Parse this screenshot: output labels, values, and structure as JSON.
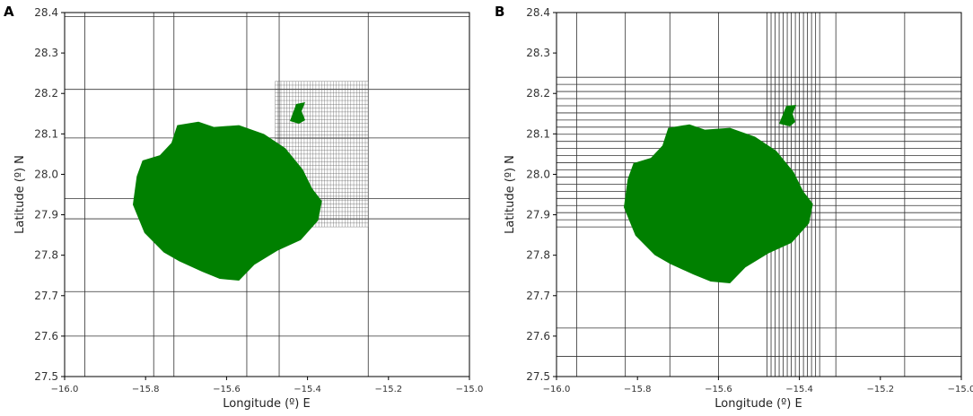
{
  "chart_data": [
    {
      "type": "grid-map",
      "panel_label": "A",
      "xlabel": "Longitude (º) E",
      "ylabel": "Latitude (º) N",
      "xlim": [
        -16.0,
        -15.0
      ],
      "ylim": [
        27.5,
        28.4
      ],
      "xticks": [
        -16.0,
        -15.8,
        -15.6,
        -15.4,
        -15.2,
        -15.0
      ],
      "xtick_labels": [
        "−16.0",
        "−15.8",
        "−15.6",
        "−15.4",
        "−15.2",
        "−15.0"
      ],
      "yticks": [
        27.5,
        27.6,
        27.7,
        27.8,
        27.9,
        28.0,
        28.1,
        28.2,
        28.3,
        28.4
      ],
      "ytick_labels": [
        "27.5",
        "27.6",
        "27.7",
        "27.8",
        "27.9",
        "28.0",
        "28.1",
        "28.2",
        "28.3",
        "28.4"
      ],
      "coarse_grid_lon": [
        -15.95,
        -15.78,
        -15.73,
        -15.55,
        -15.47,
        -15.25
      ],
      "coarse_grid_lat": [
        27.6,
        27.71,
        27.89,
        27.94,
        28.09,
        28.21,
        28.39
      ],
      "refined_box": {
        "lon": [
          -15.48,
          -15.25
        ],
        "lat": [
          27.87,
          28.23
        ],
        "nx": 32,
        "ny": 38
      },
      "island_color": "#008000"
    },
    {
      "type": "grid-map",
      "panel_label": "B",
      "xlabel": "Longitude (º) E",
      "ylabel": "Latitude (º) N",
      "xlim": [
        -16.0,
        -15.0
      ],
      "ylim": [
        27.5,
        28.4
      ],
      "xticks": [
        -16.0,
        -15.8,
        -15.6,
        -15.4,
        -15.2,
        -15.0
      ],
      "xtick_labels": [
        "−16.0",
        "−15.8",
        "−15.6",
        "−15.4",
        "−15.2",
        "−15.0"
      ],
      "yticks": [
        27.5,
        27.6,
        27.7,
        27.8,
        27.9,
        28.0,
        28.1,
        28.2,
        28.3,
        28.4
      ],
      "ytick_labels": [
        "27.5",
        "27.6",
        "27.7",
        "27.8",
        "27.9",
        "28.0",
        "28.1",
        "28.2",
        "28.3",
        "28.4"
      ],
      "coarse_grid_lon": [
        -15.95,
        -15.83,
        -15.72,
        -15.6,
        -15.31,
        -15.14
      ],
      "coarse_grid_lat": [
        27.55,
        27.62,
        27.71
      ],
      "refined_lon_band": {
        "range": [
          -15.48,
          -15.35
        ],
        "count": 14
      },
      "refined_lat_band": {
        "range": [
          27.87,
          28.24
        ],
        "count": 22
      },
      "island_color": "#008000"
    }
  ]
}
